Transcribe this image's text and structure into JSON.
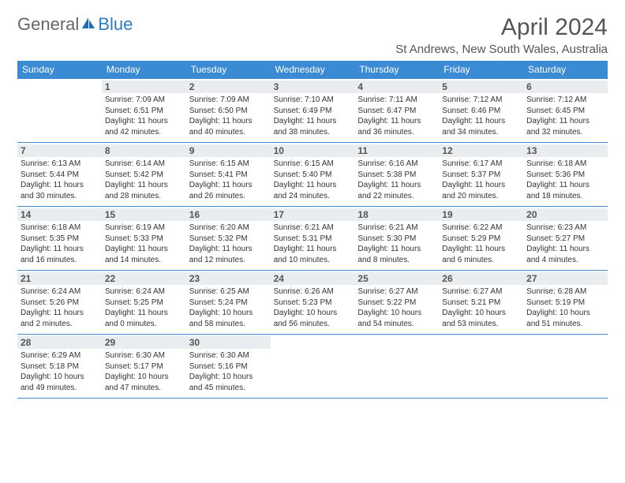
{
  "logo": {
    "word1": "General",
    "word2": "Blue"
  },
  "title": "April 2024",
  "location": "St Andrews, New South Wales, Australia",
  "colors": {
    "header_bg": "#3b8bd4",
    "header_text": "#ffffff",
    "daynum_bg": "#e9edf0",
    "text": "#333333",
    "logo_blue": "#2b7cc4",
    "logo_gray": "#666666"
  },
  "day_labels": [
    "Sunday",
    "Monday",
    "Tuesday",
    "Wednesday",
    "Thursday",
    "Friday",
    "Saturday"
  ],
  "weeks": [
    [
      null,
      {
        "day": "1",
        "sunrise": "Sunrise: 7:09 AM",
        "sunset": "Sunset: 6:51 PM",
        "daylight1": "Daylight: 11 hours",
        "daylight2": "and 42 minutes."
      },
      {
        "day": "2",
        "sunrise": "Sunrise: 7:09 AM",
        "sunset": "Sunset: 6:50 PM",
        "daylight1": "Daylight: 11 hours",
        "daylight2": "and 40 minutes."
      },
      {
        "day": "3",
        "sunrise": "Sunrise: 7:10 AM",
        "sunset": "Sunset: 6:49 PM",
        "daylight1": "Daylight: 11 hours",
        "daylight2": "and 38 minutes."
      },
      {
        "day": "4",
        "sunrise": "Sunrise: 7:11 AM",
        "sunset": "Sunset: 6:47 PM",
        "daylight1": "Daylight: 11 hours",
        "daylight2": "and 36 minutes."
      },
      {
        "day": "5",
        "sunrise": "Sunrise: 7:12 AM",
        "sunset": "Sunset: 6:46 PM",
        "daylight1": "Daylight: 11 hours",
        "daylight2": "and 34 minutes."
      },
      {
        "day": "6",
        "sunrise": "Sunrise: 7:12 AM",
        "sunset": "Sunset: 6:45 PM",
        "daylight1": "Daylight: 11 hours",
        "daylight2": "and 32 minutes."
      }
    ],
    [
      {
        "day": "7",
        "sunrise": "Sunrise: 6:13 AM",
        "sunset": "Sunset: 5:44 PM",
        "daylight1": "Daylight: 11 hours",
        "daylight2": "and 30 minutes."
      },
      {
        "day": "8",
        "sunrise": "Sunrise: 6:14 AM",
        "sunset": "Sunset: 5:42 PM",
        "daylight1": "Daylight: 11 hours",
        "daylight2": "and 28 minutes."
      },
      {
        "day": "9",
        "sunrise": "Sunrise: 6:15 AM",
        "sunset": "Sunset: 5:41 PM",
        "daylight1": "Daylight: 11 hours",
        "daylight2": "and 26 minutes."
      },
      {
        "day": "10",
        "sunrise": "Sunrise: 6:15 AM",
        "sunset": "Sunset: 5:40 PM",
        "daylight1": "Daylight: 11 hours",
        "daylight2": "and 24 minutes."
      },
      {
        "day": "11",
        "sunrise": "Sunrise: 6:16 AM",
        "sunset": "Sunset: 5:38 PM",
        "daylight1": "Daylight: 11 hours",
        "daylight2": "and 22 minutes."
      },
      {
        "day": "12",
        "sunrise": "Sunrise: 6:17 AM",
        "sunset": "Sunset: 5:37 PM",
        "daylight1": "Daylight: 11 hours",
        "daylight2": "and 20 minutes."
      },
      {
        "day": "13",
        "sunrise": "Sunrise: 6:18 AM",
        "sunset": "Sunset: 5:36 PM",
        "daylight1": "Daylight: 11 hours",
        "daylight2": "and 18 minutes."
      }
    ],
    [
      {
        "day": "14",
        "sunrise": "Sunrise: 6:18 AM",
        "sunset": "Sunset: 5:35 PM",
        "daylight1": "Daylight: 11 hours",
        "daylight2": "and 16 minutes."
      },
      {
        "day": "15",
        "sunrise": "Sunrise: 6:19 AM",
        "sunset": "Sunset: 5:33 PM",
        "daylight1": "Daylight: 11 hours",
        "daylight2": "and 14 minutes."
      },
      {
        "day": "16",
        "sunrise": "Sunrise: 6:20 AM",
        "sunset": "Sunset: 5:32 PM",
        "daylight1": "Daylight: 11 hours",
        "daylight2": "and 12 minutes."
      },
      {
        "day": "17",
        "sunrise": "Sunrise: 6:21 AM",
        "sunset": "Sunset: 5:31 PM",
        "daylight1": "Daylight: 11 hours",
        "daylight2": "and 10 minutes."
      },
      {
        "day": "18",
        "sunrise": "Sunrise: 6:21 AM",
        "sunset": "Sunset: 5:30 PM",
        "daylight1": "Daylight: 11 hours",
        "daylight2": "and 8 minutes."
      },
      {
        "day": "19",
        "sunrise": "Sunrise: 6:22 AM",
        "sunset": "Sunset: 5:29 PM",
        "daylight1": "Daylight: 11 hours",
        "daylight2": "and 6 minutes."
      },
      {
        "day": "20",
        "sunrise": "Sunrise: 6:23 AM",
        "sunset": "Sunset: 5:27 PM",
        "daylight1": "Daylight: 11 hours",
        "daylight2": "and 4 minutes."
      }
    ],
    [
      {
        "day": "21",
        "sunrise": "Sunrise: 6:24 AM",
        "sunset": "Sunset: 5:26 PM",
        "daylight1": "Daylight: 11 hours",
        "daylight2": "and 2 minutes."
      },
      {
        "day": "22",
        "sunrise": "Sunrise: 6:24 AM",
        "sunset": "Sunset: 5:25 PM",
        "daylight1": "Daylight: 11 hours",
        "daylight2": "and 0 minutes."
      },
      {
        "day": "23",
        "sunrise": "Sunrise: 6:25 AM",
        "sunset": "Sunset: 5:24 PM",
        "daylight1": "Daylight: 10 hours",
        "daylight2": "and 58 minutes."
      },
      {
        "day": "24",
        "sunrise": "Sunrise: 6:26 AM",
        "sunset": "Sunset: 5:23 PM",
        "daylight1": "Daylight: 10 hours",
        "daylight2": "and 56 minutes."
      },
      {
        "day": "25",
        "sunrise": "Sunrise: 6:27 AM",
        "sunset": "Sunset: 5:22 PM",
        "daylight1": "Daylight: 10 hours",
        "daylight2": "and 54 minutes."
      },
      {
        "day": "26",
        "sunrise": "Sunrise: 6:27 AM",
        "sunset": "Sunset: 5:21 PM",
        "daylight1": "Daylight: 10 hours",
        "daylight2": "and 53 minutes."
      },
      {
        "day": "27",
        "sunrise": "Sunrise: 6:28 AM",
        "sunset": "Sunset: 5:19 PM",
        "daylight1": "Daylight: 10 hours",
        "daylight2": "and 51 minutes."
      }
    ],
    [
      {
        "day": "28",
        "sunrise": "Sunrise: 6:29 AM",
        "sunset": "Sunset: 5:18 PM",
        "daylight1": "Daylight: 10 hours",
        "daylight2": "and 49 minutes."
      },
      {
        "day": "29",
        "sunrise": "Sunrise: 6:30 AM",
        "sunset": "Sunset: 5:17 PM",
        "daylight1": "Daylight: 10 hours",
        "daylight2": "and 47 minutes."
      },
      {
        "day": "30",
        "sunrise": "Sunrise: 6:30 AM",
        "sunset": "Sunset: 5:16 PM",
        "daylight1": "Daylight: 10 hours",
        "daylight2": "and 45 minutes."
      },
      null,
      null,
      null,
      null
    ]
  ]
}
